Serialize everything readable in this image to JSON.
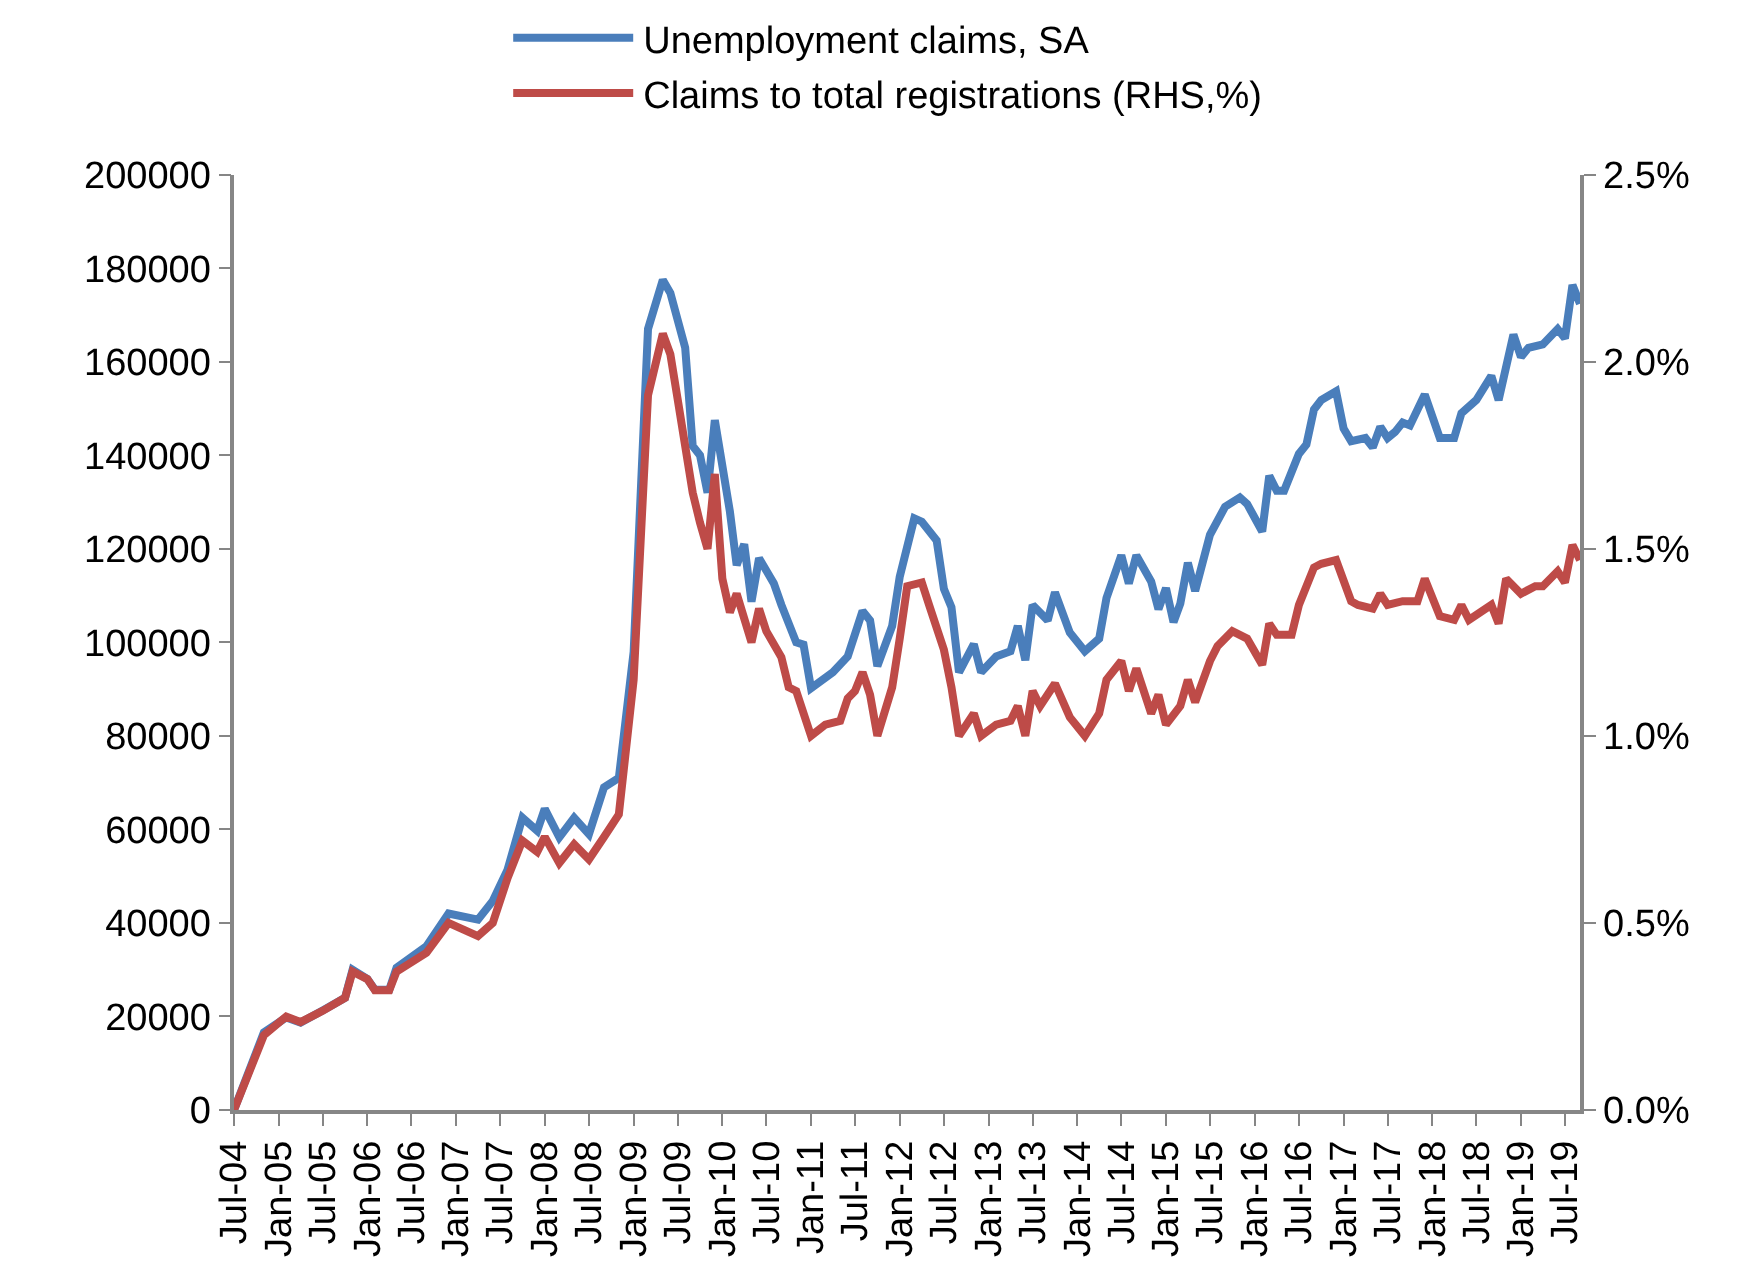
{
  "chart_data": {
    "type": "line",
    "series": [
      {
        "name": "Unemployment claims, SA",
        "color": "#4a7ebb",
        "x": [
          "2004-07",
          "2004-11",
          "2005-02",
          "2005-04",
          "2005-07",
          "2005-10",
          "2005-11",
          "2006-01",
          "2006-02",
          "2006-04",
          "2006-05",
          "2006-09",
          "2006-12",
          "2007-04",
          "2007-06",
          "2007-08",
          "2007-10",
          "2007-12",
          "2008-01",
          "2008-03",
          "2008-05",
          "2008-07",
          "2008-09",
          "2008-11",
          "2009-01",
          "2009-03",
          "2009-05",
          "2009-06",
          "2009-08",
          "2009-09",
          "2009-10",
          "2009-11",
          "2009-12",
          "2010-02",
          "2010-03",
          "2010-04",
          "2010-05",
          "2010-06",
          "2010-08",
          "2010-09",
          "2010-11",
          "2010-12",
          "2011-01",
          "2011-04",
          "2011-06",
          "2011-08",
          "2011-09",
          "2011-10",
          "2011-12",
          "2012-01",
          "2012-03",
          "2012-04",
          "2012-06",
          "2012-07",
          "2012-08",
          "2012-09",
          "2012-11",
          "2012-12",
          "2013-02",
          "2013-04",
          "2013-05",
          "2013-06",
          "2013-07",
          "2013-09",
          "2013-10",
          "2013-12",
          "2014-02",
          "2014-04",
          "2014-05",
          "2014-07",
          "2014-08",
          "2014-09",
          "2014-11",
          "2014-12",
          "2015-01",
          "2015-02",
          "2015-03",
          "2015-04",
          "2015-05",
          "2015-07",
          "2015-09",
          "2015-11",
          "2015-12",
          "2016-02",
          "2016-03",
          "2016-04",
          "2016-05",
          "2016-07",
          "2016-08",
          "2016-09",
          "2016-10",
          "2016-12",
          "2017-01",
          "2017-02",
          "2017-04",
          "2017-05",
          "2017-06",
          "2017-07",
          "2017-08",
          "2017-09",
          "2017-10",
          "2017-12",
          "2018-02",
          "2018-04",
          "2018-05",
          "2018-07",
          "2018-09",
          "2018-10",
          "2018-12",
          "2019-01",
          "2019-02",
          "2019-04",
          "2019-06",
          "2019-07",
          "2019-08",
          "2019-09"
        ],
        "values": [
          0,
          16600,
          19800,
          18700,
          21300,
          24000,
          30000,
          28000,
          25700,
          25700,
          30400,
          35000,
          42000,
          40700,
          44700,
          51400,
          62500,
          59700,
          64400,
          58300,
          62500,
          59000,
          69000,
          71000,
          98000,
          167000,
          177500,
          174700,
          163000,
          142000,
          140000,
          132000,
          147500,
          128000,
          116500,
          121000,
          108700,
          118000,
          112600,
          108000,
          100000,
          99500,
          90200,
          93600,
          97000,
          106700,
          104700,
          94900,
          103500,
          114000,
          126500,
          125800,
          121800,
          111400,
          107500,
          93600,
          99600,
          93600,
          97000,
          98100,
          103500,
          96200,
          108000,
          104700,
          110700,
          102100,
          98100,
          100800,
          109500,
          118600,
          112600,
          118600,
          113000,
          107100,
          111600,
          104300,
          108300,
          117000,
          111000,
          123000,
          129000,
          131000,
          129600,
          123700,
          135600,
          132400,
          132400,
          140300,
          142300,
          149800,
          151800,
          153700,
          145700,
          143000,
          143700,
          141700,
          146100,
          143700,
          145000,
          147000,
          146400,
          153000,
          143700,
          143700,
          149000,
          151800,
          157000,
          151800,
          165800,
          161000,
          163000,
          163700,
          167000,
          165000,
          176400,
          172400
        ]
      },
      {
        "name": "Claims to total registrations (RHS,%)",
        "color": "#be4b48",
        "axis": "y2",
        "x": [
          "2004-07",
          "2004-11",
          "2005-02",
          "2005-04",
          "2005-07",
          "2005-10",
          "2005-11",
          "2006-01",
          "2006-02",
          "2006-04",
          "2006-05",
          "2006-09",
          "2006-12",
          "2007-04",
          "2007-06",
          "2007-08",
          "2007-10",
          "2007-12",
          "2008-01",
          "2008-03",
          "2008-05",
          "2008-07",
          "2008-09",
          "2008-11",
          "2009-01",
          "2009-03",
          "2009-05",
          "2009-06",
          "2009-07",
          "2009-09",
          "2009-10",
          "2009-11",
          "2009-12",
          "2010-01",
          "2010-02",
          "2010-03",
          "2010-05",
          "2010-06",
          "2010-07",
          "2010-09",
          "2010-10",
          "2010-11",
          "2011-01",
          "2011-03",
          "2011-05",
          "2011-06",
          "2011-07",
          "2011-08",
          "2011-09",
          "2011-10",
          "2011-12",
          "2012-01",
          "2012-02",
          "2012-04",
          "2012-05",
          "2012-07",
          "2012-08",
          "2012-09",
          "2012-11",
          "2012-12",
          "2013-02",
          "2013-04",
          "2013-05",
          "2013-06",
          "2013-07",
          "2013-08",
          "2013-10",
          "2013-12",
          "2014-02",
          "2014-04",
          "2014-05",
          "2014-07",
          "2014-08",
          "2014-09",
          "2014-11",
          "2014-12",
          "2015-01",
          "2015-03",
          "2015-04",
          "2015-05",
          "2015-07",
          "2015-08",
          "2015-10",
          "2015-12",
          "2016-02",
          "2016-03",
          "2016-04",
          "2016-06",
          "2016-07",
          "2016-09",
          "2016-10",
          "2016-12",
          "2017-02",
          "2017-03",
          "2017-05",
          "2017-06",
          "2017-07",
          "2017-09",
          "2017-11",
          "2017-12",
          "2018-02",
          "2018-04",
          "2018-05",
          "2018-06",
          "2018-09",
          "2018-10",
          "2018-11",
          "2019-01",
          "2019-03",
          "2019-04",
          "2019-06",
          "2019-07",
          "2019-08",
          "2019-09"
        ],
        "values": [
          0,
          0.2,
          0.25,
          0.235,
          0.265,
          0.3,
          0.37,
          0.35,
          0.32,
          0.32,
          0.37,
          0.42,
          0.5,
          0.465,
          0.5,
          0.62,
          0.72,
          0.69,
          0.73,
          0.66,
          0.71,
          0.67,
          0.73,
          0.79,
          1.15,
          1.91,
          2.075,
          2.02,
          1.9,
          1.65,
          1.57,
          1.5,
          1.7,
          1.42,
          1.33,
          1.38,
          1.25,
          1.34,
          1.28,
          1.21,
          1.13,
          1.12,
          1.0,
          1.03,
          1.04,
          1.1,
          1.12,
          1.17,
          1.11,
          1.0,
          1.13,
          1.26,
          1.4,
          1.41,
          1.35,
          1.23,
          1.13,
          1.0,
          1.06,
          1.0,
          1.03,
          1.04,
          1.08,
          1.0,
          1.12,
          1.08,
          1.14,
          1.05,
          1.0,
          1.06,
          1.15,
          1.2,
          1.12,
          1.18,
          1.06,
          1.11,
          1.03,
          1.08,
          1.15,
          1.09,
          1.2,
          1.24,
          1.28,
          1.26,
          1.19,
          1.3,
          1.27,
          1.27,
          1.35,
          1.45,
          1.46,
          1.47,
          1.36,
          1.35,
          1.34,
          1.38,
          1.35,
          1.36,
          1.36,
          1.42,
          1.32,
          1.31,
          1.35,
          1.31,
          1.35,
          1.3,
          1.42,
          1.38,
          1.4,
          1.4,
          1.44,
          1.41,
          1.51,
          1.47
        ]
      }
    ],
    "xlim": [
      "2004-07",
      "2019-09"
    ],
    "xticks": [
      {
        "value": "2004-07",
        "label": "Jul-04"
      },
      {
        "value": "2005-01",
        "label": "Jan-05"
      },
      {
        "value": "2005-07",
        "label": "Jul-05"
      },
      {
        "value": "2006-01",
        "label": "Jan-06"
      },
      {
        "value": "2006-07",
        "label": "Jul-06"
      },
      {
        "value": "2007-01",
        "label": "Jan-07"
      },
      {
        "value": "2007-07",
        "label": "Jul-07"
      },
      {
        "value": "2008-01",
        "label": "Jan-08"
      },
      {
        "value": "2008-07",
        "label": "Jul-08"
      },
      {
        "value": "2009-01",
        "label": "Jan-09"
      },
      {
        "value": "2009-07",
        "label": "Jul-09"
      },
      {
        "value": "2010-01",
        "label": "Jan-10"
      },
      {
        "value": "2010-07",
        "label": "Jul-10"
      },
      {
        "value": "2011-01",
        "label": "Jan-11"
      },
      {
        "value": "2011-07",
        "label": "Jul-11"
      },
      {
        "value": "2012-01",
        "label": "Jan-12"
      },
      {
        "value": "2012-07",
        "label": "Jul-12"
      },
      {
        "value": "2013-01",
        "label": "Jan-13"
      },
      {
        "value": "2013-07",
        "label": "Jul-13"
      },
      {
        "value": "2014-01",
        "label": "Jan-14"
      },
      {
        "value": "2014-07",
        "label": "Jul-14"
      },
      {
        "value": "2015-01",
        "label": "Jan-15"
      },
      {
        "value": "2015-07",
        "label": "Jul-15"
      },
      {
        "value": "2016-01",
        "label": "Jan-16"
      },
      {
        "value": "2016-07",
        "label": "Jul-16"
      },
      {
        "value": "2017-01",
        "label": "Jan-17"
      },
      {
        "value": "2017-07",
        "label": "Jul-17"
      },
      {
        "value": "2018-01",
        "label": "Jan-18"
      },
      {
        "value": "2018-07",
        "label": "Jul-18"
      },
      {
        "value": "2019-01",
        "label": "Jan-19"
      },
      {
        "value": "2019-07",
        "label": "Jul-19"
      }
    ],
    "ylim": [
      0,
      200000
    ],
    "yticks": [
      0,
      20000,
      40000,
      60000,
      80000,
      100000,
      120000,
      140000,
      160000,
      180000,
      200000
    ],
    "y2lim": [
      0,
      2.5
    ],
    "y2ticks": [
      {
        "value": 0,
        "label": "0.0%"
      },
      {
        "value": 0.5,
        "label": "0.5%"
      },
      {
        "value": 1.0,
        "label": "1.0%"
      },
      {
        "value": 1.5,
        "label": "1.5%"
      },
      {
        "value": 2.0,
        "label": "2.0%"
      },
      {
        "value": 2.5,
        "label": "2.5%"
      }
    ],
    "legend": "top",
    "marker": "none",
    "line_style": "solid"
  }
}
